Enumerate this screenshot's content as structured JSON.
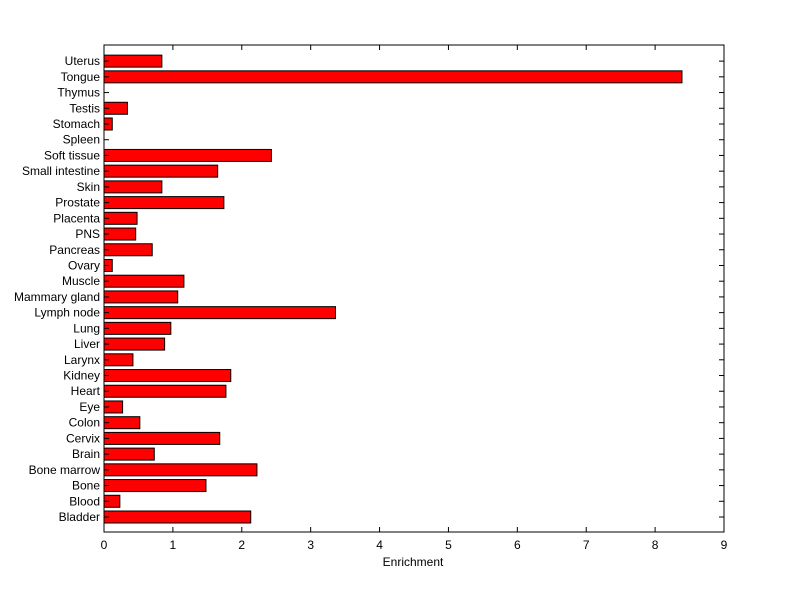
{
  "chart_data": {
    "type": "bar",
    "orientation": "horizontal",
    "title": "",
    "xlabel": "Enrichment",
    "ylabel": "",
    "xlim": [
      0,
      9
    ],
    "xticks": [
      0,
      1,
      2,
      3,
      4,
      5,
      6,
      7,
      8,
      9
    ],
    "grid": false,
    "legend": "none",
    "bar_color": "#ff0000",
    "categories": [
      "Bladder",
      "Blood",
      "Bone",
      "Bone marrow",
      "Brain",
      "Cervix",
      "Colon",
      "Eye",
      "Heart",
      "Kidney",
      "Larynx",
      "Liver",
      "Lung",
      "Lymph node",
      "Mammary gland",
      "Muscle",
      "Ovary",
      "Pancreas",
      "PNS",
      "Placenta",
      "Prostate",
      "Skin",
      "Small intestine",
      "Soft tissue",
      "Spleen",
      "Stomach",
      "Testis",
      "Thymus",
      "Tongue",
      "Uterus"
    ],
    "values": [
      2.13,
      0.23,
      1.48,
      2.22,
      0.73,
      1.68,
      0.52,
      0.27,
      1.77,
      1.84,
      0.42,
      0.88,
      0.97,
      3.36,
      1.07,
      1.16,
      0.12,
      0.7,
      0.46,
      0.48,
      1.74,
      0.84,
      1.65,
      2.43,
      0.0,
      0.12,
      0.34,
      0.0,
      8.39,
      0.84
    ]
  }
}
